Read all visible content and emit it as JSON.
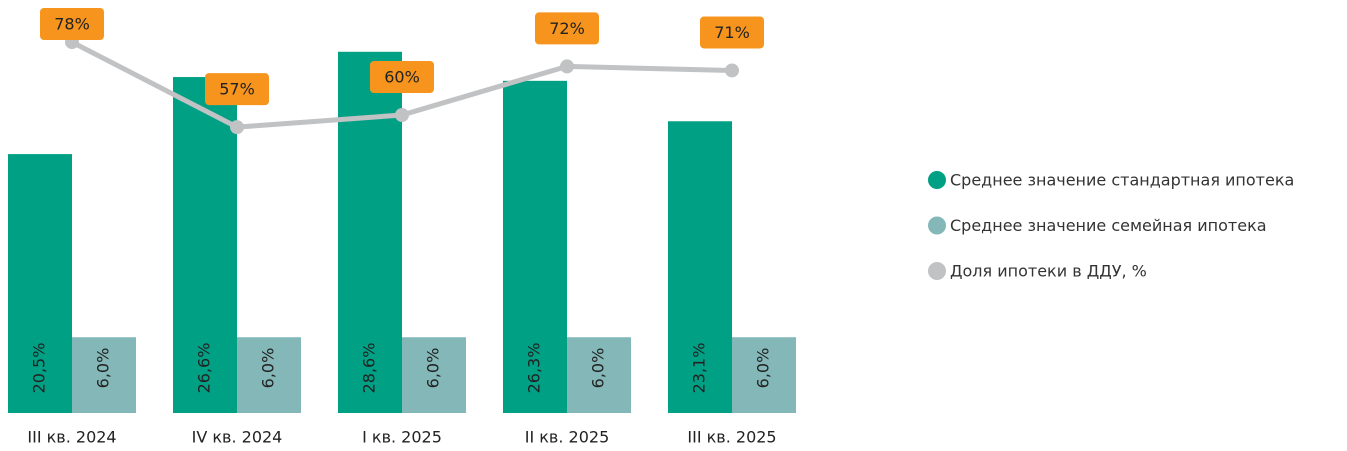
{
  "chart_data": {
    "type": "bar",
    "categories": [
      "III кв. 2024",
      "IV кв. 2024",
      "I кв. 2025",
      "II кв. 2025",
      "III кв. 2025"
    ],
    "series": [
      {
        "name": "Среднее значение стандартная ипотека",
        "color": "#00a085",
        "values": [
          20.5,
          26.6,
          28.6,
          26.3,
          23.1
        ],
        "value_labels": [
          "20,5%",
          "26,6%",
          "28,6%",
          "26,3%",
          "23,1%"
        ]
      },
      {
        "name": "Среднее значение семейная ипотека",
        "color": "#84b8b8",
        "values": [
          6.0,
          6.0,
          6.0,
          6.0,
          6.0
        ],
        "value_labels": [
          "6,0%",
          "6,0%",
          "6,0%",
          "6,0%",
          "6,0%"
        ]
      },
      {
        "name": "Доля ипотеки в ДДУ, %",
        "color": "#c0c2c4",
        "type": "line",
        "axis": "y2",
        "values": [
          78,
          57,
          60,
          72,
          71
        ],
        "value_labels": [
          "78%",
          "57%",
          "60%",
          "72%",
          "71%"
        ]
      }
    ],
    "ylim": [
      0,
      32.7
    ],
    "y2lim": [
      -13.6,
      88.4
    ],
    "label_color": "#f7941d",
    "legend": "right"
  }
}
